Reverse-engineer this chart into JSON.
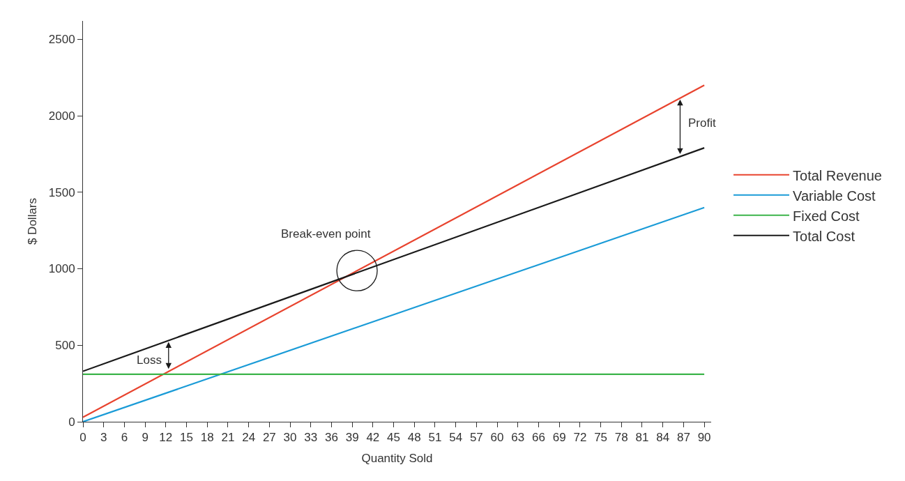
{
  "chart_data": {
    "type": "line",
    "xlabel": "Quantity Sold",
    "ylabel": "$ Dollars",
    "xlim": [
      0,
      91
    ],
    "xticks": [
      0,
      3,
      6,
      9,
      12,
      15,
      18,
      21,
      24,
      27,
      30,
      33,
      36,
      39,
      42,
      45,
      48,
      51,
      54,
      57,
      60,
      63,
      66,
      69,
      72,
      75,
      78,
      81,
      84,
      87,
      90
    ],
    "ylim": [
      0,
      2620
    ],
    "yticks": [
      0,
      500,
      1000,
      1500,
      2000,
      2500
    ],
    "x": [
      0,
      90
    ],
    "series": [
      {
        "name": "Total Revenue",
        "color": "#e8432e",
        "values": [
          30,
          2200
        ]
      },
      {
        "name": "Variable Cost",
        "color": "#1a9bd7",
        "values": [
          0,
          1400
        ]
      },
      {
        "name": "Fixed Cost",
        "color": "#3cb44a",
        "values": [
          310,
          310
        ]
      },
      {
        "name": "Total Cost",
        "color": "#1a1a1a",
        "values": [
          330,
          1790
        ]
      }
    ],
    "annotations": [
      {
        "text": "Break-even point",
        "x": 39.7,
        "y": 988
      },
      {
        "text": "Loss",
        "x": 12.4,
        "y": 531
      },
      {
        "text": "Profit",
        "x": 86.5,
        "y": 2116
      }
    ],
    "grid": false,
    "legend": "right",
    "marker": "none",
    "line_style": "solid"
  }
}
